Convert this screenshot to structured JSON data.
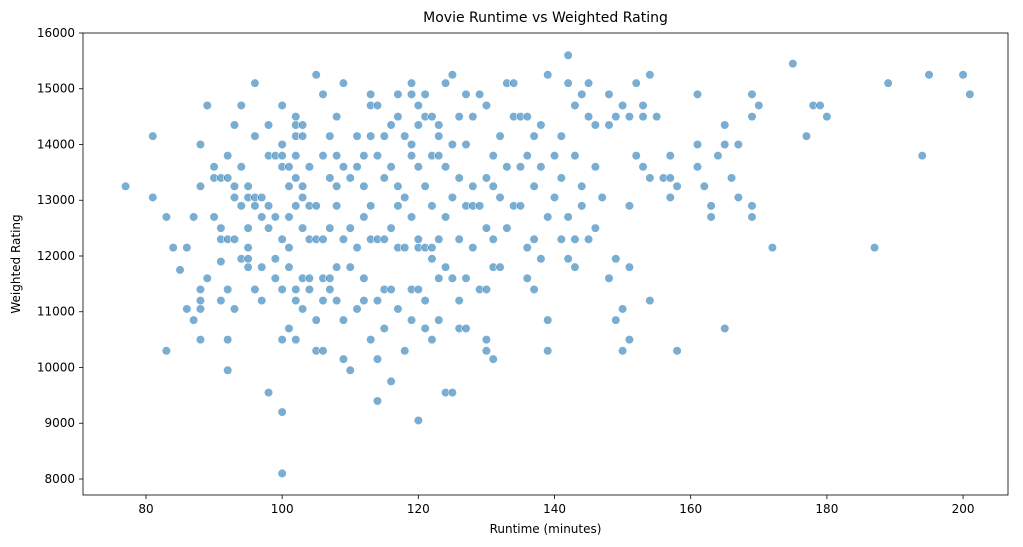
{
  "chart_data": {
    "type": "scatter",
    "title": "Movie Runtime vs Weighted Rating",
    "x_label": "Runtime (minutes)",
    "y_label": "Weighted Rating",
    "color": "#1f77b4",
    "xlim": [
      70.75,
      206.6
    ],
    "ylim": [
      7713,
      16000
    ],
    "xticks": [
      80,
      100,
      120,
      140,
      160,
      180,
      200
    ],
    "yticks": [
      8000,
      9000,
      10000,
      11000,
      12000,
      13000,
      14000,
      15000,
      16000
    ],
    "grid": false,
    "x": [
      77,
      81,
      81,
      83,
      83,
      84,
      85,
      86,
      86,
      87,
      87,
      88,
      88,
      88,
      88,
      88,
      88,
      89,
      89,
      90,
      90,
      90,
      91,
      91,
      91,
      91,
      91,
      92,
      92,
      92,
      92,
      92,
      92,
      93,
      93,
      93,
      93,
      93,
      94,
      94,
      94,
      94,
      95,
      95,
      95,
      95,
      95,
      95,
      96,
      96,
      96,
      96,
      96,
      97,
      97,
      97,
      97,
      98,
      98,
      98,
      98,
      98,
      99,
      99,
      99,
      99,
      100,
      100,
      100,
      100,
      100,
      100,
      100,
      100,
      100,
      101,
      101,
      101,
      101,
      101,
      101,
      102,
      102,
      102,
      102,
      102,
      102,
      102,
      102,
      102,
      103,
      103,
      103,
      103,
      103,
      103,
      103,
      104,
      104,
      104,
      104,
      104,
      105,
      105,
      105,
      105,
      105,
      106,
      106,
      106,
      106,
      106,
      106,
      107,
      107,
      107,
      107,
      107,
      108,
      108,
      108,
      108,
      108,
      108,
      109,
      109,
      109,
      109,
      109,
      110,
      110,
      110,
      110,
      111,
      111,
      111,
      111,
      112,
      112,
      112,
      112,
      112,
      113,
      113,
      113,
      113,
      113,
      113,
      114,
      114,
      114,
      114,
      114,
      114,
      115,
      115,
      115,
      115,
      115,
      116,
      116,
      116,
      116,
      116,
      117,
      117,
      117,
      117,
      117,
      117,
      118,
      118,
      118,
      118,
      119,
      119,
      119,
      119,
      119,
      119,
      119,
      120,
      120,
      120,
      120,
      120,
      120,
      120,
      121,
      121,
      121,
      121,
      121,
      121,
      122,
      122,
      122,
      122,
      122,
      122,
      123,
      123,
      123,
      123,
      123,
      123,
      124,
      124,
      124,
      124,
      124,
      125,
      125,
      125,
      125,
      125,
      126,
      126,
      126,
      126,
      126,
      127,
      127,
      127,
      127,
      127,
      128,
      128,
      128,
      128,
      129,
      129,
      129,
      130,
      130,
      130,
      130,
      130,
      130,
      131,
      131,
      131,
      131,
      131,
      132,
      132,
      132,
      133,
      133,
      133,
      134,
      134,
      134,
      135,
      135,
      135,
      136,
      136,
      136,
      136,
      137,
      137,
      137,
      137,
      138,
      138,
      138,
      139,
      139,
      139,
      139,
      140,
      140,
      141,
      141,
      141,
      142,
      142,
      142,
      142,
      143,
      143,
      143,
      143,
      144,
      144,
      144,
      145,
      145,
      145,
      146,
      146,
      146,
      147,
      148,
      148,
      148,
      149,
      149,
      149,
      150,
      150,
      150,
      151,
      151,
      151,
      151,
      152,
      152,
      153,
      153,
      153,
      154,
      154,
      154,
      155,
      156,
      157,
      157,
      157,
      158,
      158,
      161,
      161,
      161,
      162,
      163,
      163,
      164,
      165,
      165,
      165,
      166,
      167,
      167,
      169,
      169,
      169,
      169,
      170,
      172,
      175,
      177,
      178,
      179,
      180,
      187,
      189,
      194,
      195,
      200,
      201
    ],
    "values": [
      13250,
      14150,
      13050,
      12700,
      10300,
      12150,
      11750,
      11050,
      12150,
      10850,
      12700,
      14000,
      13250,
      11400,
      11200,
      11050,
      10500,
      14700,
      11600,
      13600,
      13400,
      12700,
      13400,
      12500,
      12300,
      11900,
      11200,
      13800,
      13400,
      12300,
      11400,
      10500,
      9950,
      14350,
      13250,
      13050,
      12300,
      11050,
      14700,
      13600,
      12900,
      11950,
      13250,
      13050,
      12500,
      12150,
      11800,
      11950,
      15100,
      14150,
      13050,
      12900,
      11400,
      13050,
      12700,
      11800,
      11200,
      14350,
      13800,
      12900,
      12500,
      9550,
      13800,
      12700,
      11950,
      11600,
      14700,
      14000,
      13800,
      13600,
      12300,
      11400,
      10500,
      9200,
      8100,
      13600,
      13250,
      12700,
      12150,
      11800,
      10700,
      14500,
      14350,
      14150,
      13800,
      13400,
      12900,
      11400,
      11200,
      10500,
      14350,
      14150,
      13250,
      13050,
      12500,
      11600,
      11050,
      13600,
      12900,
      12300,
      11600,
      11400,
      15250,
      12900,
      12300,
      10850,
      10300,
      14900,
      13800,
      12300,
      11600,
      11200,
      10300,
      14150,
      13400,
      12500,
      11600,
      11400,
      14500,
      13800,
      13250,
      12900,
      11800,
      11200,
      15100,
      13600,
      12300,
      10850,
      10150,
      13400,
      12500,
      11800,
      9950,
      14150,
      13600,
      12150,
      11050,
      13800,
      13250,
      12700,
      11600,
      11200,
      14900,
      14700,
      14150,
      12900,
      12300,
      10500,
      14700,
      13800,
      12300,
      11200,
      10150,
      9400,
      14150,
      13400,
      12300,
      11400,
      10700,
      14350,
      13600,
      12500,
      11400,
      9750,
      14900,
      14500,
      13250,
      12900,
      12150,
      11050,
      14150,
      13050,
      12150,
      10300,
      15100,
      14900,
      14000,
      13800,
      12700,
      11400,
      10850,
      14700,
      14350,
      13600,
      12300,
      12150,
      11400,
      9050,
      14900,
      14500,
      13250,
      12150,
      11200,
      10700,
      14500,
      13800,
      12900,
      12150,
      11950,
      10500,
      14350,
      14150,
      13800,
      12300,
      11600,
      10850,
      15100,
      13600,
      12700,
      11800,
      9550,
      15250,
      14000,
      13050,
      11600,
      9550,
      14500,
      13400,
      12300,
      11200,
      10700,
      14900,
      14000,
      12900,
      11600,
      10700,
      14500,
      13250,
      12900,
      12150,
      14900,
      12900,
      11400,
      14700,
      13400,
      12500,
      11400,
      10500,
      10300,
      13800,
      13250,
      12300,
      11800,
      10150,
      14150,
      13050,
      11800,
      15100,
      13600,
      12500,
      15100,
      14500,
      12900,
      14500,
      13600,
      12900,
      14500,
      13800,
      12150,
      11600,
      14150,
      13250,
      12300,
      11400,
      14350,
      13600,
      11950,
      15250,
      12700,
      10850,
      10300,
      13800,
      13050,
      14150,
      13400,
      12300,
      15600,
      15100,
      12700,
      11950,
      14700,
      13800,
      12300,
      11800,
      14900,
      13250,
      12900,
      15100,
      14500,
      12300,
      14350,
      13600,
      12500,
      13050,
      14900,
      14350,
      11600,
      14500,
      11950,
      10850,
      14700,
      11050,
      10300,
      14500,
      12900,
      11800,
      10500,
      15100,
      13800,
      14700,
      14500,
      13600,
      15250,
      13400,
      11200,
      14500,
      13400,
      13800,
      13050,
      13400,
      13250,
      10300,
      14900,
      13600,
      14000,
      13250,
      12900,
      12700,
      13800,
      14350,
      14000,
      10700,
      13400,
      14000,
      13050,
      14900,
      14500,
      12900,
      12700,
      14700,
      12150,
      15450,
      14150,
      14700,
      14700,
      14500,
      12150,
      15100,
      13800,
      15250,
      15250,
      14900
    ]
  }
}
